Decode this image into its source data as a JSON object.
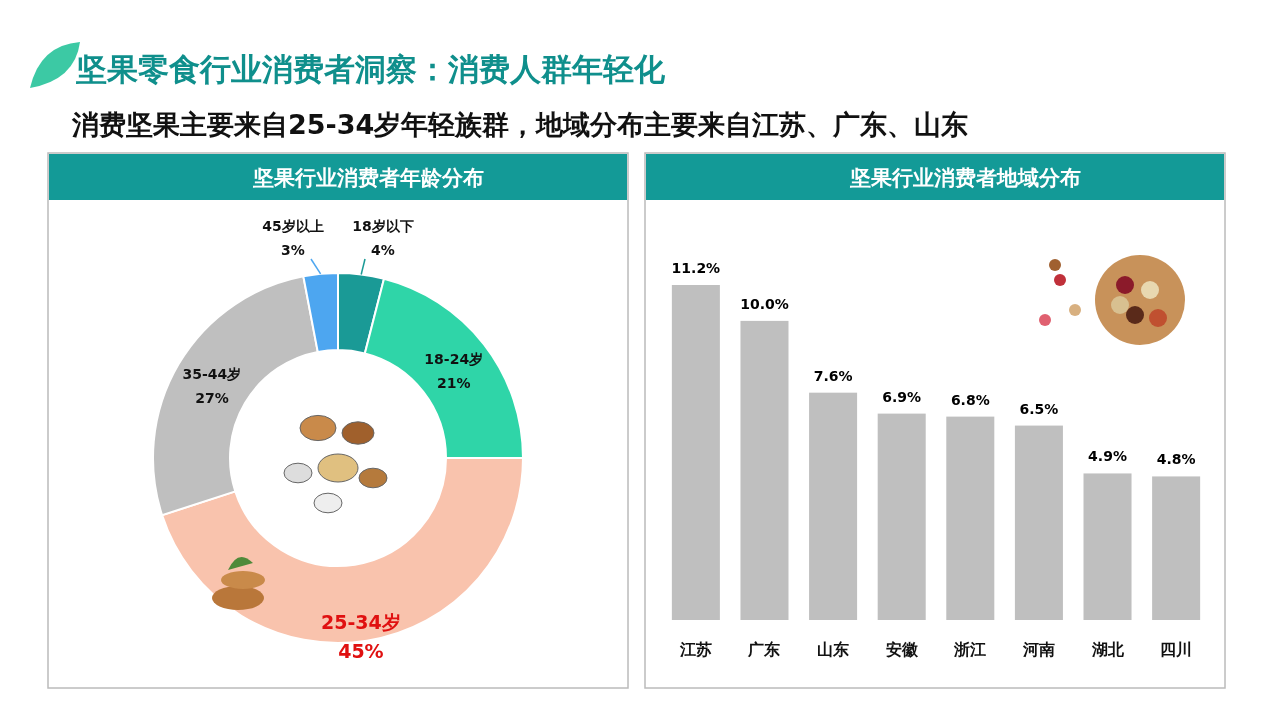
{
  "chart_data": [
    {
      "type": "other",
      "title": "坚果零食行业消费者洞察：消费人群年轻化",
      "subtitle": "消费坚果主要来自25-34岁年轻族群，地域分布主要来自江苏、广东、山东"
    },
    {
      "type": "donut",
      "title": "坚果行业消费者年龄分布",
      "categories": [
        "18岁以下",
        "18-24岁",
        "25-34岁",
        "35-44岁",
        "45岁以上"
      ],
      "values": [
        4,
        21,
        45,
        27,
        3
      ],
      "colors": [
        "#1a9a96",
        "#2fd5a8",
        "#f9c3ad",
        "#bfbfbf",
        "#4da6f0"
      ],
      "value_labels": [
        "4%",
        "21%",
        "45%",
        "27%",
        "3%"
      ]
    },
    {
      "type": "bar",
      "title": "坚果行业消费者地域分布",
      "categories": [
        "江苏",
        "广东",
        "山东",
        "安徽",
        "浙江",
        "河南",
        "湖北",
        "四川"
      ],
      "values": [
        11.2,
        10.0,
        7.6,
        6.9,
        6.8,
        6.5,
        4.9,
        4.8
      ],
      "color": "#bfbfbf",
      "value_labels": [
        "11.2%",
        "10.0%",
        "7.6%",
        "6.9%",
        "6.8%",
        "6.5%",
        "4.9%",
        "4.8%"
      ]
    }
  ]
}
